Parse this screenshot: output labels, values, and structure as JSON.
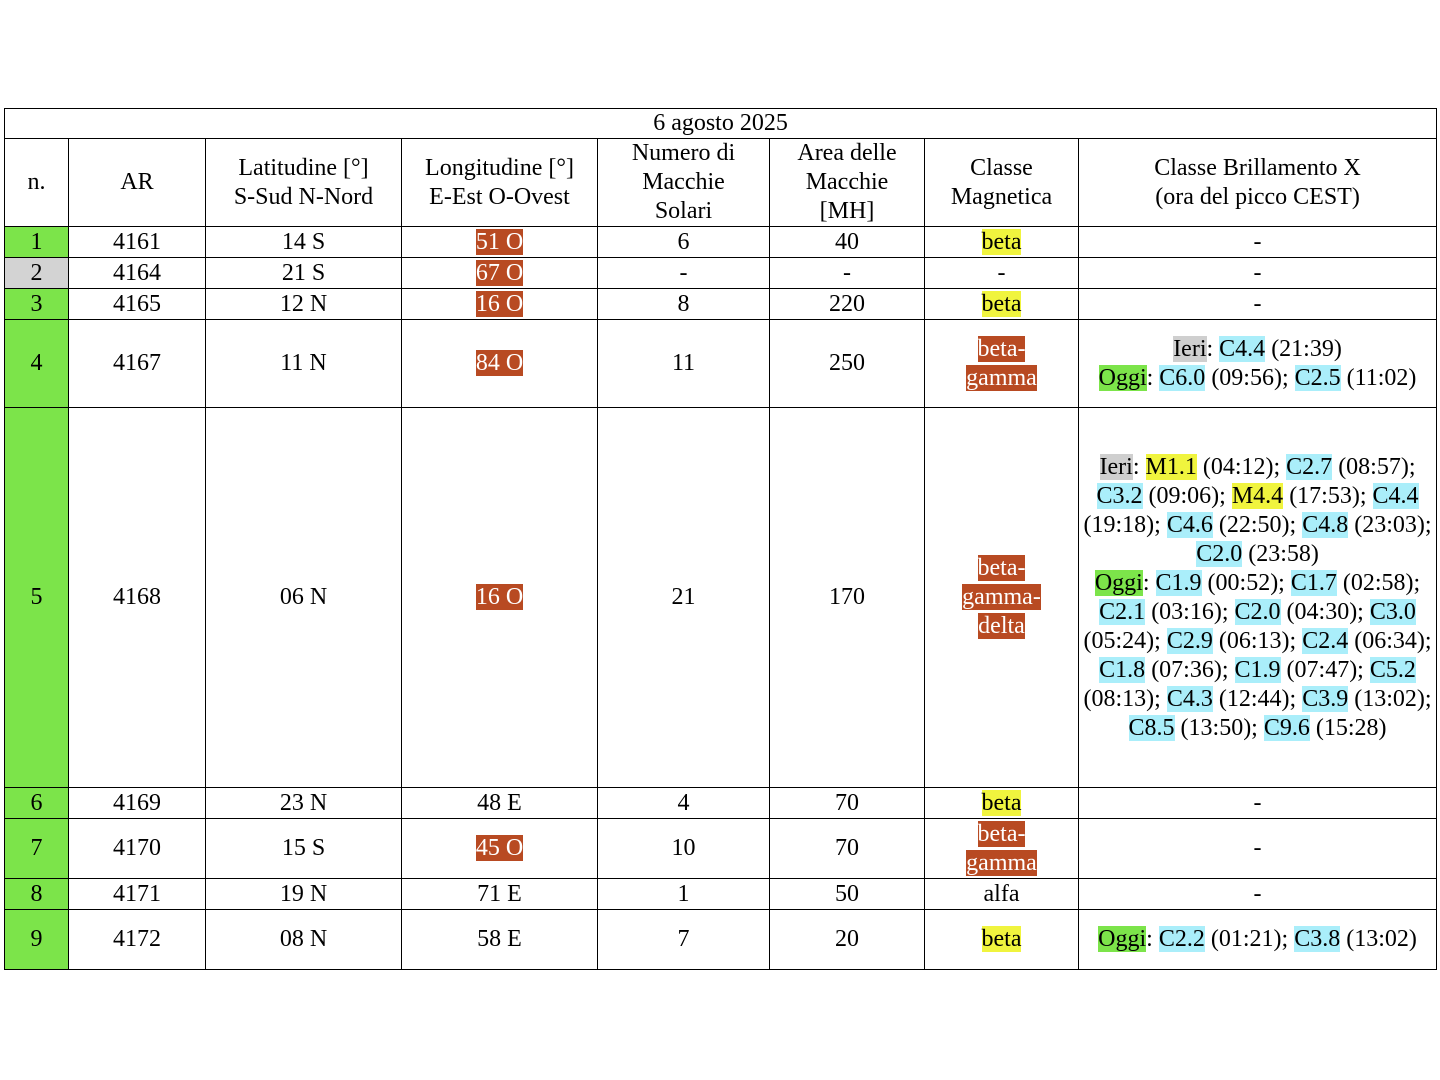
{
  "title": "6 agosto 2025",
  "headers": {
    "n": "n.",
    "ar": "AR",
    "lat": [
      "Latitudine [°]",
      "S-Sud N-Nord"
    ],
    "lon": [
      "Longitudine [°]",
      "E-Est O-Ovest"
    ],
    "spots": [
      "Numero di",
      "Macchie",
      "Solari"
    ],
    "area": [
      "Area delle",
      "Macchie",
      "[MH]"
    ],
    "mag": [
      "Classe",
      "Magnetica"
    ],
    "flare": [
      "Classe Brillamento X",
      "(ora del picco CEST)"
    ]
  },
  "colors": {
    "green": "#7ce44a",
    "gray": "#d3d3d3",
    "orange": "#b84a22",
    "yellow": "#f0f43e",
    "blue": "#aaeefa"
  },
  "rows": [
    {
      "n": "1",
      "n_color": "green",
      "ar": "4161",
      "lat": "14 S",
      "lon": "51 O",
      "lon_hl": "orange",
      "spots": "6",
      "area": "40",
      "mag": [
        "beta"
      ],
      "mag_hl": "yellow",
      "flares": [
        [
          {
            "t": "-"
          }
        ]
      ]
    },
    {
      "n": "2",
      "n_color": "gray",
      "ar": "4164",
      "lat": "21 S",
      "lon": "67 O",
      "lon_hl": "orange",
      "spots": "-",
      "area": "-",
      "mag": [
        "-"
      ],
      "mag_hl": "",
      "flares": [
        [
          {
            "t": "-"
          }
        ]
      ]
    },
    {
      "n": "3",
      "n_color": "green",
      "ar": "4165",
      "lat": "12 N",
      "lon": "16 O",
      "lon_hl": "orange",
      "spots": "8",
      "area": "220",
      "mag": [
        "beta"
      ],
      "mag_hl": "yellow",
      "flares": [
        [
          {
            "t": "-"
          }
        ]
      ]
    },
    {
      "n": "4",
      "n_color": "green",
      "ar": "4167",
      "lat": "11 N",
      "lon": "84 O",
      "lon_hl": "orange",
      "spots": "11",
      "area": "250",
      "mag": [
        "beta-",
        "gamma"
      ],
      "mag_hl": "orange",
      "flares": [
        [
          {
            "t": "Ieri",
            "h": "gray"
          },
          {
            "t": ": "
          },
          {
            "t": "C4.4",
            "h": "blue"
          },
          {
            "t": " (21:39)"
          }
        ],
        [
          {
            "t": "Oggi",
            "h": "green"
          },
          {
            "t": ": "
          },
          {
            "t": "C6.0",
            "h": "blue"
          },
          {
            "t": " (09:56); "
          },
          {
            "t": "C2.5",
            "h": "blue"
          },
          {
            "t": " (11:02)"
          }
        ]
      ]
    },
    {
      "n": "5",
      "n_color": "green",
      "ar": "4168",
      "lat": "06 N",
      "lon": "16 O",
      "lon_hl": "orange",
      "spots": "21",
      "area": "170",
      "mag": [
        "beta-",
        "gamma-",
        "delta"
      ],
      "mag_hl": "orange",
      "flares": [
        [
          {
            "t": "Ieri",
            "h": "gray"
          },
          {
            "t": ": "
          },
          {
            "t": "M1.1",
            "h": "yellow"
          },
          {
            "t": " (04:12); "
          },
          {
            "t": "C2.7",
            "h": "blue"
          },
          {
            "t": " (08:57); "
          },
          {
            "t": "C3.2",
            "h": "blue"
          },
          {
            "t": " (09:06); "
          },
          {
            "t": "M4.4",
            "h": "yellow"
          },
          {
            "t": " (17:53); "
          },
          {
            "t": "C4.4",
            "h": "blue"
          },
          {
            "t": " (19:18); "
          },
          {
            "t": "C4.6",
            "h": "blue"
          },
          {
            "t": " (22:50); "
          },
          {
            "t": "C4.8",
            "h": "blue"
          },
          {
            "t": " (23:03); "
          },
          {
            "t": "C2.0",
            "h": "blue"
          },
          {
            "t": " (23:58)"
          }
        ],
        [
          {
            "t": "Oggi",
            "h": "green"
          },
          {
            "t": ": "
          },
          {
            "t": "C1.9",
            "h": "blue"
          },
          {
            "t": " (00:52); "
          },
          {
            "t": "C1.7",
            "h": "blue"
          },
          {
            "t": " (02:58); "
          },
          {
            "t": "C2.1",
            "h": "blue"
          },
          {
            "t": " (03:16); "
          },
          {
            "t": "C2.0",
            "h": "blue"
          },
          {
            "t": " (04:30); "
          },
          {
            "t": "C3.0",
            "h": "blue"
          },
          {
            "t": " (05:24); "
          },
          {
            "t": "C2.9",
            "h": "blue"
          },
          {
            "t": " (06:13); "
          },
          {
            "t": "C2.4",
            "h": "blue"
          },
          {
            "t": " (06:34); "
          },
          {
            "t": "C1.8",
            "h": "blue"
          },
          {
            "t": " (07:36); "
          },
          {
            "t": "C1.9",
            "h": "blue"
          },
          {
            "t": " (07:47); "
          },
          {
            "t": "C5.2",
            "h": "blue"
          },
          {
            "t": " (08:13); "
          },
          {
            "t": "C4.3",
            "h": "blue"
          },
          {
            "t": " (12:44); "
          },
          {
            "t": "C3.9",
            "h": "blue"
          },
          {
            "t": " (13:02); "
          },
          {
            "t": "C8.5",
            "h": "blue"
          },
          {
            "t": " (13:50); "
          },
          {
            "t": "C9.6",
            "h": "blue"
          },
          {
            "t": " (15:28)"
          }
        ]
      ]
    },
    {
      "n": "6",
      "n_color": "green",
      "ar": "4169",
      "lat": "23 N",
      "lon": "48 E",
      "lon_hl": "",
      "spots": "4",
      "area": "70",
      "mag": [
        "beta"
      ],
      "mag_hl": "yellow",
      "flares": [
        [
          {
            "t": "-"
          }
        ]
      ]
    },
    {
      "n": "7",
      "n_color": "green",
      "ar": "4170",
      "lat": "15 S",
      "lon": "45 O",
      "lon_hl": "orange",
      "spots": "10",
      "area": "70",
      "mag": [
        "beta-",
        "gamma"
      ],
      "mag_hl": "orange",
      "flares": [
        [
          {
            "t": "-"
          }
        ]
      ]
    },
    {
      "n": "8",
      "n_color": "green",
      "ar": "4171",
      "lat": "19 N",
      "lon": "71 E",
      "lon_hl": "",
      "spots": "1",
      "area": "50",
      "mag": [
        "alfa"
      ],
      "mag_hl": "",
      "flares": [
        [
          {
            "t": "-"
          }
        ]
      ]
    },
    {
      "n": "9",
      "n_color": "green",
      "ar": "4172",
      "lat": "08 N",
      "lon": "58 E",
      "lon_hl": "",
      "spots": "7",
      "area": "20",
      "mag": [
        "beta"
      ],
      "mag_hl": "yellow",
      "flares": [
        [
          {
            "t": "Oggi",
            "h": "green"
          },
          {
            "t": ": "
          },
          {
            "t": "C2.2",
            "h": "blue"
          },
          {
            "t": " (01:21); "
          },
          {
            "t": "C3.8",
            "h": "blue"
          },
          {
            "t": " (13:02)"
          }
        ]
      ]
    }
  ]
}
